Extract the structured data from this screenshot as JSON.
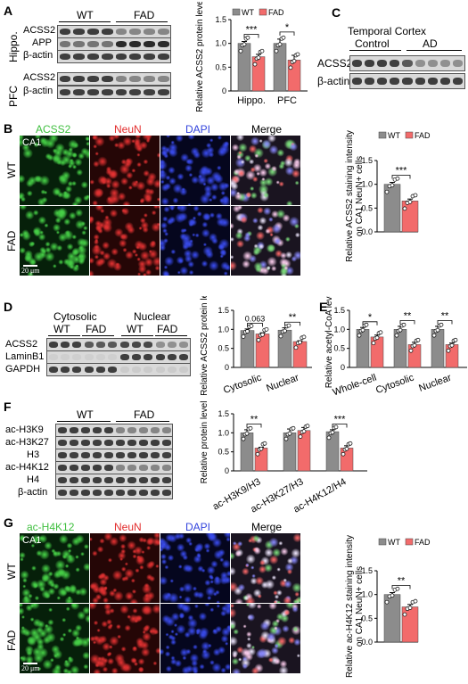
{
  "panels": {
    "A": {
      "label": "A",
      "groups": [
        "WT",
        "FAD"
      ],
      "region_labels": [
        "Hippo.",
        "PFC"
      ],
      "rows_hippo": [
        "ACSS2",
        "APP",
        "β-actin"
      ],
      "rows_pfc": [
        "ACSS2",
        "β-actin"
      ],
      "legend": [
        "WT",
        "FAD"
      ]
    },
    "B": {
      "label": "B",
      "channels": [
        "ACSS2",
        "NeuN",
        "DAPI",
        "Merge"
      ],
      "region": "CA1",
      "row_labels": [
        "WT",
        "FAD"
      ],
      "scale": "20 μm",
      "legend": [
        "WT",
        "FAD"
      ]
    },
    "C": {
      "label": "C",
      "title": "Temporal Cortex",
      "groups": [
        "Control",
        "AD"
      ],
      "rows": [
        "ACSS2",
        "β-actin"
      ]
    },
    "D": {
      "label": "D",
      "fractions": [
        "Cytosolic",
        "Nuclear"
      ],
      "groups": [
        "WT",
        "FAD",
        "WT",
        "FAD"
      ],
      "rows": [
        "ACSS2",
        "LaminB1",
        "GAPDH"
      ]
    },
    "E": {
      "label": "E"
    },
    "F": {
      "label": "F",
      "groups": [
        "WT",
        "FAD"
      ],
      "rows": [
        "ac-H3K9",
        "ac-H3K27",
        "H3",
        "ac-H4K12",
        "H4",
        "β-actin"
      ]
    },
    "G": {
      "label": "G",
      "channels": [
        "ac-H4K12",
        "NeuN",
        "DAPI",
        "Merge"
      ],
      "region": "CA1",
      "row_labels": [
        "WT",
        "FAD"
      ],
      "scale": "20 μm",
      "legend": [
        "WT",
        "FAD"
      ]
    }
  },
  "colors": {
    "wt": "#8c8c8c",
    "fad": "#f26b6b",
    "green": "#3fbf3f",
    "red": "#e22b2b",
    "blue": "#3344dd"
  },
  "chart_data": [
    {
      "id": "A",
      "type": "bar",
      "categories": [
        "Hippo.",
        "PFC"
      ],
      "ylabel": "Relative ACSS2 protein level",
      "ylim": [
        0,
        1.5
      ],
      "yticks": [
        "0",
        "0.5",
        "1.0",
        "1.5"
      ],
      "series": [
        {
          "name": "WT",
          "values": [
            1.0,
            1.0
          ]
        },
        {
          "name": "FAD",
          "values": [
            0.72,
            0.65
          ]
        }
      ],
      "errors": [
        [
          0.04,
          0.09
        ],
        [
          0.05,
          0.1
        ]
      ],
      "significance": [
        "***",
        "*"
      ]
    },
    {
      "id": "B",
      "type": "bar",
      "categories": [
        ""
      ],
      "ylabel": "Relative ACSS2 staining intensity on CA1 NeuN+ cells",
      "ylim": [
        0,
        1.5
      ],
      "yticks": [
        "0.0",
        "0.5",
        "1.0",
        "1.5"
      ],
      "series": [
        {
          "name": "WT",
          "values": [
            1.0
          ]
        },
        {
          "name": "FAD",
          "values": [
            0.65
          ]
        }
      ],
      "errors": [
        [
          0.04
        ],
        [
          0.04
        ]
      ],
      "significance": [
        "***"
      ]
    },
    {
      "id": "D",
      "type": "bar",
      "categories": [
        "Cytosolic",
        "Nuclear"
      ],
      "ylabel": "Relative ACSS2 protein level",
      "ylim": [
        0,
        1.5
      ],
      "yticks": [
        "0",
        "0.5",
        "1.0",
        "1.5"
      ],
      "series": [
        {
          "name": "WT",
          "values": [
            0.97,
            0.98
          ]
        },
        {
          "name": "FAD",
          "values": [
            0.88,
            0.68
          ]
        }
      ],
      "errors": [
        [
          0.04,
          0.06
        ],
        [
          0.03,
          0.02
        ]
      ],
      "significance": [
        "0.063",
        "**"
      ]
    },
    {
      "id": "E",
      "type": "bar",
      "categories": [
        "Whole-cell",
        "Cytosolic",
        "Nuclear"
      ],
      "ylabel": "Relative acetyl-CoA level",
      "ylim": [
        0,
        1.5
      ],
      "yticks": [
        "0",
        "0.5",
        "1.0",
        "1.5"
      ],
      "series": [
        {
          "name": "WT",
          "values": [
            1.0,
            1.0,
            1.0
          ]
        },
        {
          "name": "FAD",
          "values": [
            0.8,
            0.6,
            0.6
          ]
        }
      ],
      "errors": [
        [
          0.05,
          0.08,
          0.08
        ],
        [
          0.05,
          0.06,
          0.04
        ]
      ],
      "significance": [
        "*",
        "**",
        "**"
      ]
    },
    {
      "id": "F",
      "type": "bar",
      "categories": [
        "ac-H3K9/H3",
        "ac-H3K27/H3",
        "ac-H4K12/H4"
      ],
      "ylabel": "Relative protein level",
      "ylim": [
        0,
        1.5
      ],
      "yticks": [
        "0",
        "0.5",
        "1.0",
        "1.5"
      ],
      "series": [
        {
          "name": "WT",
          "values": [
            1.0,
            1.0,
            1.03
          ]
        },
        {
          "name": "FAD",
          "values": [
            0.6,
            1.06,
            0.6
          ]
        }
      ],
      "errors": [
        [
          0.08,
          0.1,
          0.05
        ],
        [
          0.02,
          0.08,
          0.06
        ]
      ],
      "significance": [
        "**",
        "",
        "***"
      ]
    },
    {
      "id": "G",
      "type": "bar",
      "categories": [
        ""
      ],
      "ylabel": "Relative ac-H4K12 staining intensity on CA1 NeuN+ cells",
      "ylim": [
        0,
        1.5
      ],
      "yticks": [
        "0.0",
        "0.5",
        "1.0",
        "1.5"
      ],
      "series": [
        {
          "name": "WT",
          "values": [
            1.0
          ]
        },
        {
          "name": "FAD",
          "values": [
            0.74
          ]
        }
      ],
      "errors": [
        [
          0.04
        ],
        [
          0.05
        ]
      ],
      "significance": [
        "**"
      ]
    }
  ]
}
